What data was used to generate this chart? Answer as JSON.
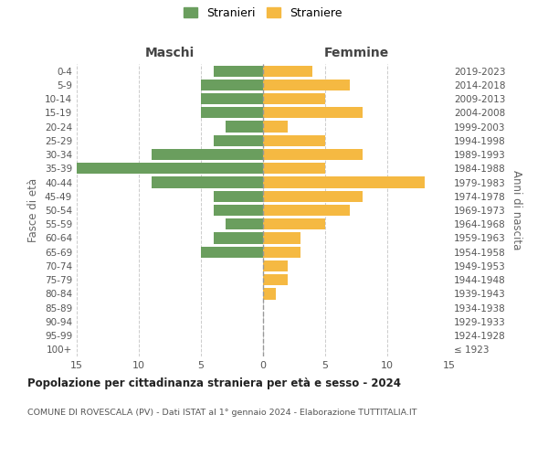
{
  "age_groups": [
    "100+",
    "95-99",
    "90-94",
    "85-89",
    "80-84",
    "75-79",
    "70-74",
    "65-69",
    "60-64",
    "55-59",
    "50-54",
    "45-49",
    "40-44",
    "35-39",
    "30-34",
    "25-29",
    "20-24",
    "15-19",
    "10-14",
    "5-9",
    "0-4"
  ],
  "birth_years": [
    "≤ 1923",
    "1924-1928",
    "1929-1933",
    "1934-1938",
    "1939-1943",
    "1944-1948",
    "1949-1953",
    "1954-1958",
    "1959-1963",
    "1964-1968",
    "1969-1973",
    "1974-1978",
    "1979-1983",
    "1984-1988",
    "1989-1993",
    "1994-1998",
    "1999-2003",
    "2004-2008",
    "2009-2013",
    "2014-2018",
    "2019-2023"
  ],
  "males": [
    0,
    0,
    0,
    0,
    0,
    0,
    0,
    5,
    4,
    3,
    4,
    4,
    9,
    15,
    9,
    4,
    3,
    5,
    5,
    5,
    4
  ],
  "females": [
    0,
    0,
    0,
    0,
    1,
    2,
    2,
    3,
    3,
    5,
    7,
    8,
    13,
    5,
    8,
    5,
    2,
    8,
    5,
    7,
    4
  ],
  "male_color": "#6a9e5e",
  "female_color": "#f5b942",
  "title": "Popolazione per cittadinanza straniera per età e sesso - 2024",
  "subtitle": "COMUNE DI ROVESCALA (PV) - Dati ISTAT al 1° gennaio 2024 - Elaborazione TUTTITALIA.IT",
  "legend_male": "Stranieri",
  "legend_female": "Straniere",
  "xlabel_left": "Maschi",
  "xlabel_right": "Femmine",
  "ylabel_left": "Fasce di età",
  "ylabel_right": "Anni di nascita",
  "xlim": 15,
  "background_color": "#ffffff",
  "grid_color": "#cccccc",
  "bar_height": 0.8
}
